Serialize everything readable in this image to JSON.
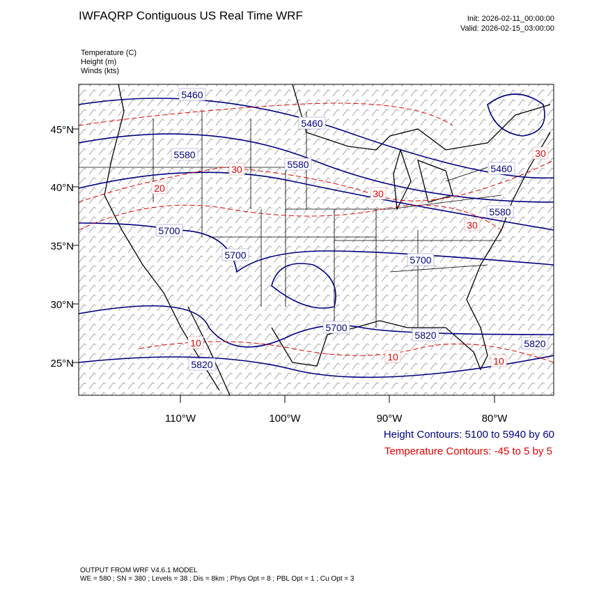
{
  "header": {
    "title": "IWFAQRP Contiguous US Real Time WRF",
    "init": "Init: 2026-02-11_00:00:00",
    "valid": "Valid: 2026-02-15_03:00:00"
  },
  "fields": [
    "Temperature   (C)",
    "Height   (m)",
    "Winds   (kts)"
  ],
  "map": {
    "lat_labels": [
      "45°N",
      "40°N",
      "35°N",
      "30°N",
      "25°N"
    ],
    "lon_labels": [
      "110°W",
      "100°W",
      "90°W",
      "80°W"
    ],
    "height_labels": [
      "5460",
      "5460",
      "5580",
      "5580",
      "5460",
      "5580",
      "5700",
      "5700",
      "5700",
      "5700",
      "5820",
      "5820",
      "5820"
    ],
    "temperature_labels": [
      "30",
      "20",
      "30",
      "30",
      "30",
      "10",
      "10",
      "10"
    ]
  },
  "legend": {
    "height": "Height Contours: 5100 to 5940 by 60",
    "temperature": "Temperature Contours: -45 to 5 by 5"
  },
  "footer": [
    "OUTPUT FROM WRF V4.6.1 MODEL",
    "WE = 580 ; SN = 380 ; Levels = 38 ; Dis = 8km ; Phys Opt = 8 ; PBL Opt = 1 ; Cu Opt = 3"
  ]
}
